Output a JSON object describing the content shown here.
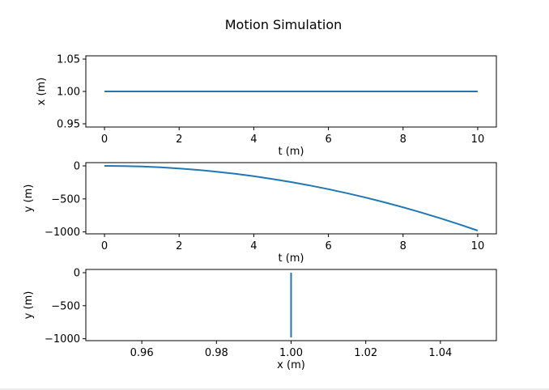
{
  "figure": {
    "title": "Motion Simulation"
  },
  "chart_data": [
    {
      "type": "line",
      "name_hint": "x-vs-t",
      "xlabel": "t (m)",
      "ylabel": "x (m)",
      "xlim": [
        -0.5,
        10.5
      ],
      "ylim": [
        0.945,
        1.055
      ],
      "xticks": [
        0,
        2,
        4,
        6,
        8,
        10
      ],
      "xtick_labels": [
        "0",
        "2",
        "4",
        "6",
        "8",
        "10"
      ],
      "yticks": [
        0.95,
        1.0,
        1.05
      ],
      "ytick_labels": [
        "0.95",
        "1.00",
        "1.05"
      ],
      "grid": false,
      "series": [
        {
          "x": [
            0,
            10
          ],
          "y": [
            1.0,
            1.0
          ],
          "color": "#1f77b4"
        }
      ]
    },
    {
      "type": "line",
      "name_hint": "y-vs-t",
      "xlabel": "t (m)",
      "ylabel": "y (m)",
      "xlim": [
        -0.5,
        10.5
      ],
      "ylim": [
        -1029,
        49
      ],
      "xticks": [
        0,
        2,
        4,
        6,
        8,
        10
      ],
      "xtick_labels": [
        "0",
        "2",
        "4",
        "6",
        "8",
        "10"
      ],
      "yticks": [
        0,
        -500,
        -1000
      ],
      "ytick_labels": [
        "0",
        "−500",
        "−1000"
      ],
      "grid": false,
      "series": [
        {
          "x": [
            0,
            0.5,
            1,
            1.5,
            2,
            2.5,
            3,
            3.5,
            4,
            4.5,
            5,
            5.5,
            6,
            6.5,
            7,
            7.5,
            8,
            8.5,
            9,
            9.5,
            10
          ],
          "y": [
            0,
            -2.45,
            -9.8,
            -22.05,
            -39.2,
            -61.25,
            -88.2,
            -120.05,
            -156.8,
            -198.45,
            -245,
            -296.45,
            -352.8,
            -414.05,
            -480.2,
            -551.25,
            -627.2,
            -708.05,
            -793.8,
            -884.45,
            -980
          ],
          "color": "#1f77b4"
        }
      ]
    },
    {
      "type": "line",
      "name_hint": "y-vs-x",
      "xlabel": "x (m)",
      "ylabel": "y (m)",
      "xlim": [
        0.945,
        1.055
      ],
      "ylim": [
        -1029,
        49
      ],
      "xticks": [
        0.96,
        0.98,
        1.0,
        1.02,
        1.04
      ],
      "xtick_labels": [
        "0.96",
        "0.98",
        "1.00",
        "1.02",
        "1.04"
      ],
      "yticks": [
        0,
        -500,
        -1000
      ],
      "ytick_labels": [
        "0",
        "−500",
        "−1000"
      ],
      "grid": false,
      "series": [
        {
          "x": [
            1.0,
            1.0
          ],
          "y": [
            0,
            -980
          ],
          "color": "#1f77b4"
        }
      ]
    }
  ]
}
